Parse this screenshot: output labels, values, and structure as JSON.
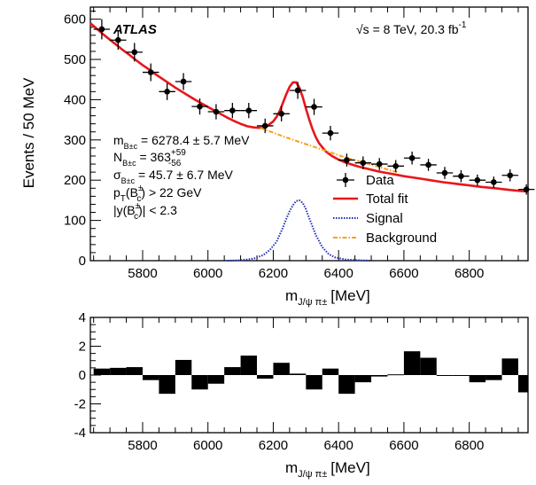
{
  "chart_data": [
    {
      "type": "scatter",
      "ylabel": "Events / 50 MeV",
      "xlabel_main": "m",
      "xlabel_sub": "J/ψ π±",
      "xlabel_unit": "[MeV]",
      "xlim": [
        5640,
        6980
      ],
      "ylim": [
        0,
        630
      ],
      "xticks": [
        5800,
        6000,
        6200,
        6400,
        6600,
        6800
      ],
      "yticks": [
        0,
        100,
        200,
        300,
        400,
        500,
        600
      ],
      "experiment": "ATLAS",
      "energy_label": "√s = 8 TeV, 20.3 fb",
      "energy_label_sup": "-1",
      "annotations": [
        {
          "main": "m",
          "sub": "B±c",
          "text": " = 6278.4 ± 5.7 MeV"
        },
        {
          "main": "N",
          "sub": "B±c",
          "text": " = 363",
          "sup": "+59",
          "sub2": "-56"
        },
        {
          "main": "σ",
          "sub": "B±c",
          "text": " = 45.7 ± 6.7 MeV"
        },
        {
          "main": "p",
          "sub": "T",
          "text": "(B",
          "sup": "±",
          "sub2": "c",
          "tail": ") > 22 GeV"
        },
        {
          "main": "|y(B",
          "sup": "±",
          "sub2": "c",
          "tail": ")| < 2.3"
        }
      ],
      "legend": {
        "placement": "right",
        "entries": [
          {
            "label": "Data",
            "style": "marker",
            "color": "#000000"
          },
          {
            "label": "Total fit",
            "style": "solid",
            "color": "#e8161a"
          },
          {
            "label": "Signal",
            "style": "dotted",
            "color": "#1f2fb4"
          },
          {
            "label": "Background",
            "style": "dashdot",
            "color": "#f5a21b"
          }
        ]
      },
      "series": [
        {
          "name": "Data",
          "xerr": 25,
          "x": [
            5675,
            5725,
            5775,
            5825,
            5875,
            5925,
            5975,
            6025,
            6075,
            6125,
            6175,
            6225,
            6275,
            6325,
            6375,
            6425,
            6475,
            6525,
            6575,
            6625,
            6675,
            6725,
            6775,
            6825,
            6875,
            6925,
            6975
          ],
          "y": [
            575,
            548,
            518,
            468,
            420,
            445,
            383,
            370,
            373,
            373,
            335,
            365,
            423,
            382,
            317,
            250,
            243,
            240,
            235,
            255,
            238,
            218,
            210,
            200,
            195,
            212,
            177
          ],
          "yerr": [
            25,
            24,
            23,
            22,
            21,
            21,
            20,
            19,
            19,
            19,
            18,
            19,
            21,
            20,
            18,
            16,
            16,
            15,
            15,
            16,
            15,
            15,
            15,
            14,
            14,
            15,
            13
          ]
        },
        {
          "name": "Total fit",
          "x": [
            5640,
            5660,
            5680,
            5700,
            5720,
            5740,
            5760,
            5780,
            5800,
            5820,
            5840,
            5860,
            5880,
            5900,
            5920,
            5940,
            5960,
            5980,
            6000,
            6020,
            6040,
            6060,
            6080,
            6100,
            6120,
            6140,
            6160,
            6180,
            6200,
            6210,
            6220,
            6230,
            6240,
            6250,
            6260,
            6270,
            6280,
            6290,
            6300,
            6310,
            6320,
            6330,
            6340,
            6360,
            6380,
            6400,
            6420,
            6440,
            6460,
            6480,
            6500,
            6520,
            6540,
            6560,
            6580,
            6600,
            6640,
            6680,
            6720,
            6760,
            6800,
            6840,
            6880,
            6920,
            6960,
            6980
          ],
          "y": [
            590,
            576,
            562,
            549,
            536,
            523,
            511,
            498,
            486,
            475,
            463,
            452,
            441,
            430,
            420,
            410,
            400,
            391,
            382,
            373,
            364,
            355,
            347,
            340,
            334,
            331,
            330,
            334,
            346,
            357,
            372,
            393,
            414,
            432,
            443,
            443,
            430,
            407,
            378,
            351,
            327,
            307,
            292,
            272,
            260,
            251,
            244,
            239,
            234,
            230,
            226,
            222,
            219,
            216,
            213,
            210,
            205,
            200,
            195,
            191,
            187,
            183,
            180,
            176,
            173,
            172
          ]
        },
        {
          "name": "Signal",
          "x": [
            6060,
            6100,
            6140,
            6170,
            6190,
            6210,
            6230,
            6240,
            6250,
            6260,
            6270,
            6280,
            6290,
            6300,
            6310,
            6320,
            6330,
            6350,
            6370,
            6390,
            6420,
            6460,
            6500
          ],
          "y": [
            0,
            1,
            5,
            14,
            27,
            47,
            83,
            104,
            123,
            138,
            148,
            150,
            144,
            128,
            106,
            85,
            64,
            34,
            16,
            8,
            3,
            1,
            0
          ]
        },
        {
          "name": "Background",
          "x": [
            6160,
            6200,
            6240,
            6280,
            6320,
            6360,
            6400,
            6440,
            6480,
            6520,
            6560,
            6580
          ],
          "y": [
            330,
            318,
            306,
            295,
            284,
            273,
            262,
            252,
            243,
            234,
            224,
            220
          ]
        }
      ]
    },
    {
      "type": "bar",
      "ylim": [
        -4,
        4
      ],
      "yticks": [
        -4,
        -2,
        0,
        2,
        4
      ],
      "xticks": [
        5800,
        6000,
        6200,
        6400,
        6600,
        6800
      ],
      "xlim": [
        5640,
        6980
      ],
      "xlabel_main": "m",
      "xlabel_sub": "J/ψ π±",
      "xlabel_unit": "[MeV]",
      "bin_width": 50,
      "x": [
        5675,
        5725,
        5775,
        5825,
        5875,
        5925,
        5975,
        6025,
        6075,
        6125,
        6175,
        6225,
        6275,
        6325,
        6375,
        6425,
        6475,
        6525,
        6575,
        6625,
        6675,
        6725,
        6775,
        6825,
        6875,
        6925,
        6975
      ],
      "values": [
        0.45,
        0.5,
        0.55,
        -0.35,
        -1.3,
        1.05,
        -1.0,
        -0.6,
        0.55,
        1.35,
        -0.25,
        0.85,
        0.1,
        -1.0,
        0.45,
        -1.3,
        -0.5,
        -0.1,
        0.05,
        1.65,
        1.2,
        0.0,
        0.0,
        -0.5,
        -0.35,
        1.15,
        -1.2
      ]
    }
  ]
}
